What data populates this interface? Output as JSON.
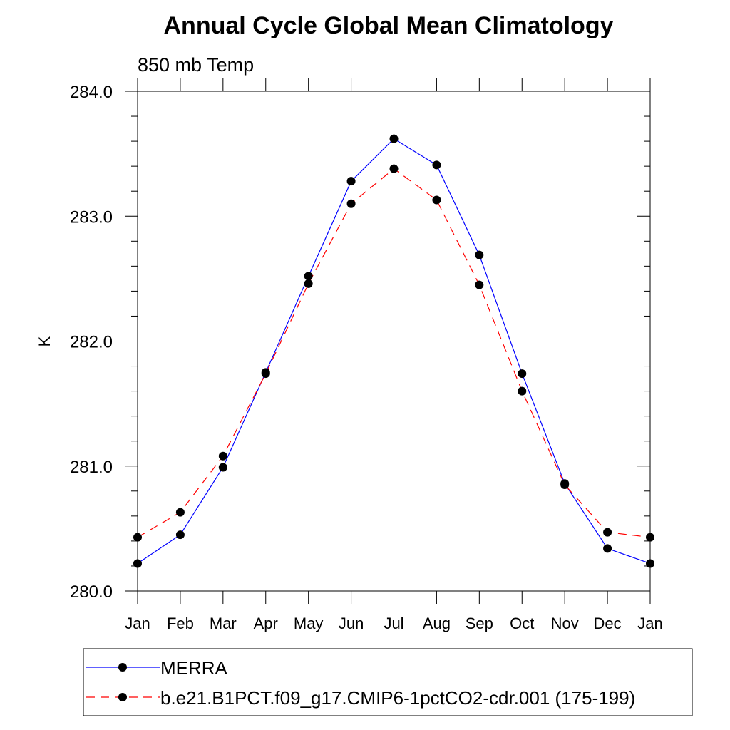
{
  "chart_data": {
    "type": "line",
    "title": "Annual Cycle Global Mean Climatology",
    "subtitle": "850 mb Temp",
    "xlabel": "",
    "ylabel": "K",
    "categories": [
      "Jan",
      "Feb",
      "Mar",
      "Apr",
      "May",
      "Jun",
      "Jul",
      "Aug",
      "Sep",
      "Oct",
      "Nov",
      "Dec",
      "Jan"
    ],
    "ylim": [
      280.0,
      284.0
    ],
    "yticks": [
      "280.0",
      "281.0",
      "282.0",
      "283.0",
      "284.0"
    ],
    "grid": false,
    "legend_position": "bottom",
    "series": [
      {
        "name": "MERRA",
        "color": "#0000ff",
        "dash": "solid",
        "marker": "filled-circle",
        "values": [
          280.22,
          280.45,
          280.99,
          281.75,
          282.52,
          283.28,
          283.62,
          283.41,
          282.69,
          281.74,
          280.86,
          280.34,
          280.22
        ]
      },
      {
        "name": "b.e21.B1PCT.f09_g17.CMIP6-1pctCO2-cdr.001 (175-199)",
        "color": "#ff0000",
        "dash": "dashed",
        "marker": "filled-circle",
        "values": [
          280.43,
          280.63,
          281.08,
          281.74,
          282.46,
          283.1,
          283.38,
          283.13,
          282.45,
          281.6,
          280.85,
          280.47,
          280.43
        ]
      }
    ]
  }
}
